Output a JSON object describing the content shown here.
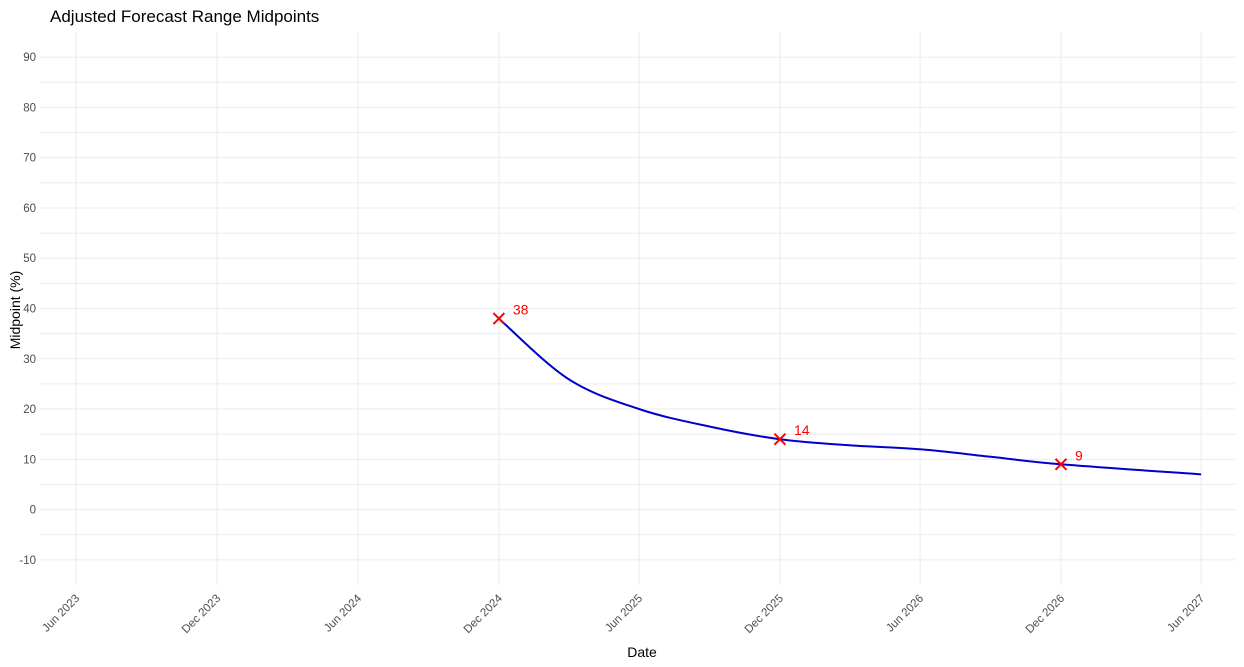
{
  "chart_data": {
    "type": "line",
    "title": "Adjusted Forecast Range Midpoints",
    "xlabel": "Date",
    "ylabel": "Midpoint (%)",
    "ylim": [
      -15,
      95
    ],
    "y_ticks": [
      -10,
      0,
      10,
      20,
      30,
      40,
      50,
      60,
      70,
      80,
      90
    ],
    "x_range": [
      "2023-04-15",
      "2027-07-15"
    ],
    "x_ticks": [
      {
        "date": "2023-06-01",
        "label": "Jun 2023"
      },
      {
        "date": "2023-12-01",
        "label": "Dec 2023"
      },
      {
        "date": "2024-06-01",
        "label": "Jun 2024"
      },
      {
        "date": "2024-12-01",
        "label": "Dec 2024"
      },
      {
        "date": "2025-06-01",
        "label": "Jun 2025"
      },
      {
        "date": "2025-12-01",
        "label": "Dec 2025"
      },
      {
        "date": "2026-06-01",
        "label": "Jun 2026"
      },
      {
        "date": "2026-12-01",
        "label": "Dec 2026"
      },
      {
        "date": "2027-06-01",
        "label": "Jun 2027"
      }
    ],
    "grid": true,
    "series": [
      {
        "name": "Midpoint curve",
        "color": "#0000cd",
        "points": [
          {
            "date": "2024-12-01",
            "value": 38
          },
          {
            "date": "2025-03-01",
            "value": 26
          },
          {
            "date": "2025-06-01",
            "value": 20
          },
          {
            "date": "2025-09-01",
            "value": 16.5
          },
          {
            "date": "2025-12-01",
            "value": 14
          },
          {
            "date": "2026-03-01",
            "value": 12.8
          },
          {
            "date": "2026-06-01",
            "value": 12
          },
          {
            "date": "2026-09-01",
            "value": 10.5
          },
          {
            "date": "2026-12-01",
            "value": 9
          },
          {
            "date": "2027-06-01",
            "value": 7
          }
        ]
      }
    ],
    "markers": {
      "color": "#ff0000",
      "shape": "x",
      "points": [
        {
          "date": "2024-12-01",
          "value": 38,
          "label": "38"
        },
        {
          "date": "2025-12-01",
          "value": 14,
          "label": "14"
        },
        {
          "date": "2026-12-01",
          "value": 9,
          "label": "9"
        }
      ]
    }
  }
}
